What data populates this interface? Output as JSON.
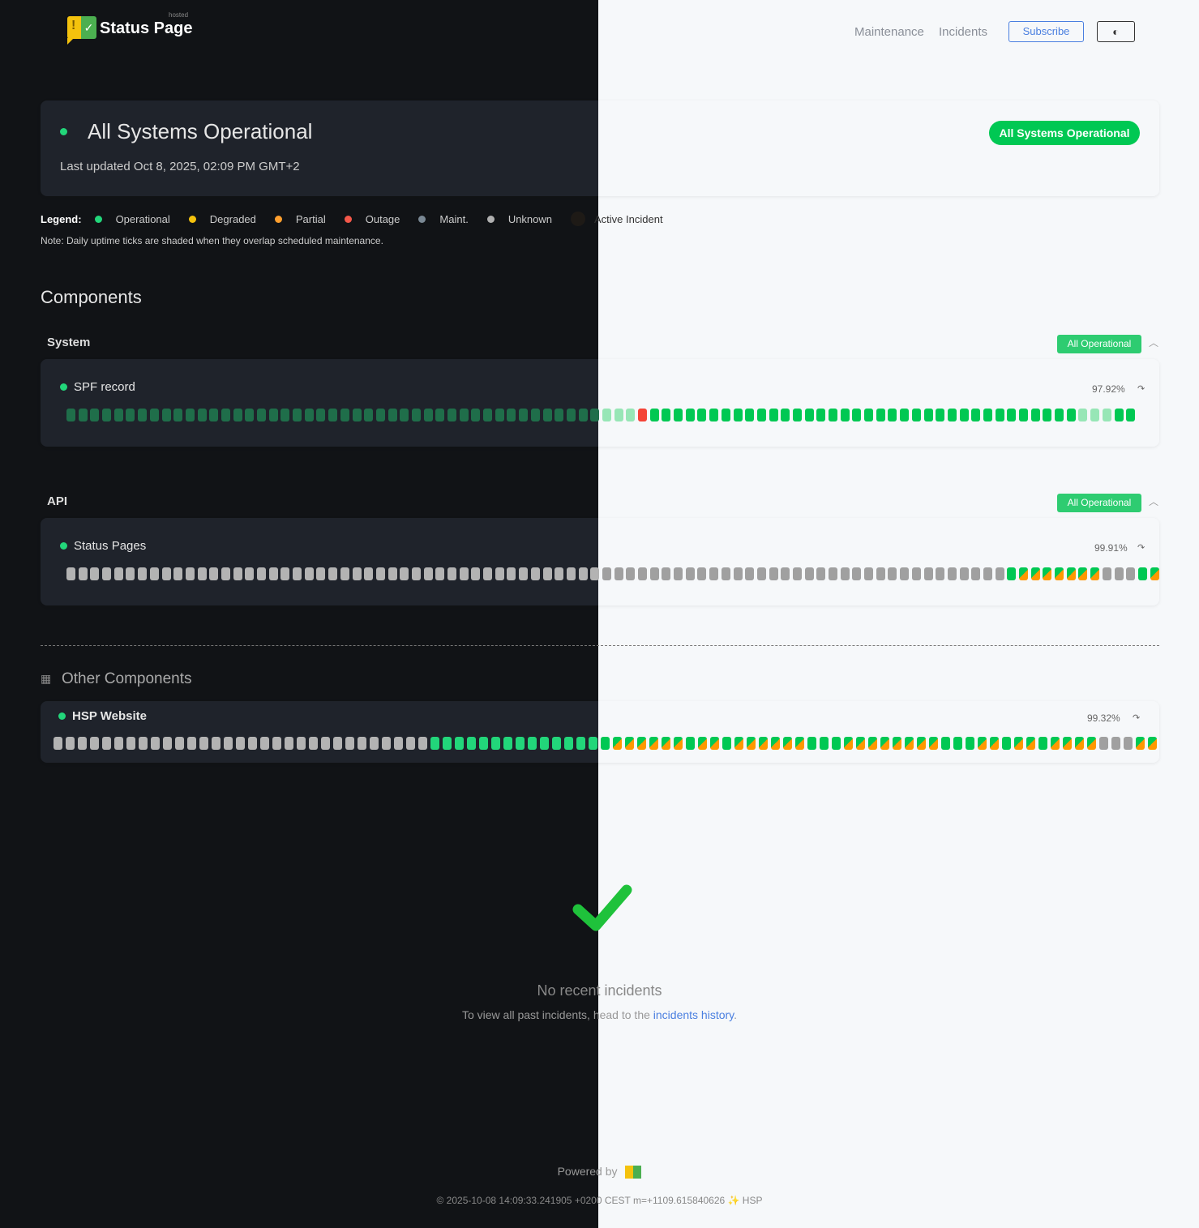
{
  "header": {
    "brand": "Status Page",
    "brand_sup": "hosted",
    "nav": [
      "Maintenance",
      "Incidents"
    ],
    "subscribe": "Subscribe",
    "theme_toggle_icon": "half-circle-icon"
  },
  "status": {
    "title": "All Systems Operational",
    "updated": "Last updated Oct 8, 2025, 02:09 PM GMT+2",
    "badge": "All Systems Operational"
  },
  "legend": {
    "label": "Legend:",
    "items": [
      {
        "label": "Operational",
        "color": "#22d67a"
      },
      {
        "label": "Degraded",
        "color": "#f4c20d"
      },
      {
        "label": "Partial",
        "color": "#ff9f2e"
      },
      {
        "label": "Outage",
        "color": "#f4584a"
      },
      {
        "label": "Maint.",
        "color": "#7a8894"
      },
      {
        "label": "Unknown",
        "color": "#b0b0b0"
      },
      {
        "label": "Active Incident",
        "color": "#1e1a16"
      }
    ],
    "note": "Note: Daily uptime ticks are shaded when they overlap scheduled maintenance."
  },
  "components": {
    "title": "Components",
    "groups": [
      {
        "name": "System",
        "badge": "All Operational",
        "items": [
          {
            "name": "SPF record",
            "uptime": "97.92%",
            "ticks": "mmmmmmmmmmmmmmmmmmmmmmmmmmmmmmmmmmmmmmmmmmmmmmmmxoooooooooooooooooooooooooooooooooooommmoo"
          }
        ]
      },
      {
        "name": "API",
        "badge": "All Operational",
        "items": [
          {
            "name": "Status Pages",
            "uptime": "99.91%",
            "ticks": "uuuuuuuuuuuuuuuuuuuuuuuuuuuuuuuuuuuuuuuuuuuuuuuuuuuuuuuuuuuuuuuuuuuuuuuuuuuuuuuopppppppuuuop"
          }
        ]
      }
    ]
  },
  "other": {
    "title": "Other Components",
    "items": [
      {
        "name": "HSP Website",
        "uptime": "99.32%",
        "ticks": "uuuuuuuuuuuuuuuuuuuuuuuuuuuuuuuoooooooooooooooppppppoppoppppppoooppppppppoooppoppoppppuuupp"
      }
    ]
  },
  "incidents": {
    "title": "No recent incidents",
    "text": "To view all past incidents, head to the ",
    "link": "incidents history",
    "period": "."
  },
  "footer": {
    "powered": "Powered by",
    "meta": "© 2025-10-08 14:09:33.241905 +0200 CEST m=+1109.615840626 ✨ HSP"
  }
}
